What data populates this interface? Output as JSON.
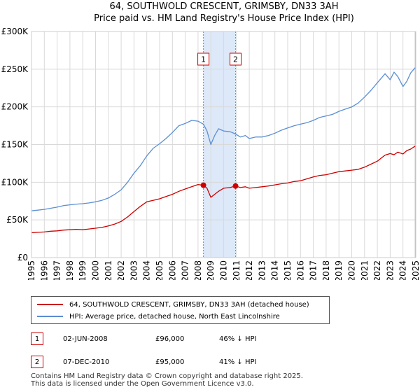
{
  "title_line1": "64, SOUTHWOLD CRESCENT, GRIMSBY, DN33 3AH",
  "title_line2": "Price paid vs. HM Land Registry's House Price Index (HPI)",
  "chart_data": {
    "type": "line",
    "ylim": [
      0,
      300000
    ],
    "xlim": [
      1995,
      2025
    ],
    "yticks": [
      {
        "value": 0,
        "label": "£0"
      },
      {
        "value": 50000,
        "label": "£50K"
      },
      {
        "value": 100000,
        "label": "£100K"
      },
      {
        "value": 150000,
        "label": "£150K"
      },
      {
        "value": 200000,
        "label": "£200K"
      },
      {
        "value": 250000,
        "label": "£250K"
      },
      {
        "value": 300000,
        "label": "£300K"
      }
    ],
    "xticks": [
      "1995",
      "1996",
      "1997",
      "1998",
      "1999",
      "2000",
      "2001",
      "2002",
      "2003",
      "2004",
      "2005",
      "2006",
      "2007",
      "2008",
      "2009",
      "2010",
      "2011",
      "2012",
      "2013",
      "2014",
      "2015",
      "2016",
      "2017",
      "2018",
      "2019",
      "2020",
      "2021",
      "2022",
      "2023",
      "2024",
      "2025"
    ],
    "grid": true,
    "shaded_period": [
      2008.42,
      2010.93
    ],
    "series": [
      {
        "name": "64, SOUTHWOLD CRESCENT, GRIMSBY, DN33 3AH (detached house)",
        "color": "#cc0000",
        "x": [
          1995,
          1995.5,
          1996,
          1996.5,
          1997,
          1997.5,
          1998,
          1998.5,
          1999,
          1999.5,
          2000,
          2000.5,
          2001,
          2001.5,
          2002,
          2002.5,
          2003,
          2003.5,
          2004,
          2004.5,
          2005,
          2005.5,
          2006,
          2006.5,
          2007,
          2007.5,
          2008,
          2008.42,
          2008.7,
          2009,
          2009.3,
          2009.6,
          2010,
          2010.5,
          2010.93,
          2011.3,
          2011.7,
          2012,
          2012.5,
          2013,
          2013.5,
          2014,
          2014.5,
          2015,
          2015.5,
          2016,
          2016.5,
          2017,
          2017.5,
          2018,
          2018.5,
          2019,
          2019.5,
          2020,
          2020.5,
          2021,
          2021.5,
          2022,
          2022.3,
          2022.6,
          2023,
          2023.3,
          2023.6,
          2024,
          2024.3,
          2024.6,
          2024.95
        ],
        "values": [
          33000,
          33500,
          34000,
          35000,
          35500,
          36500,
          37000,
          37500,
          37000,
          38000,
          39000,
          40000,
          42000,
          44500,
          48000,
          54000,
          61000,
          68000,
          74000,
          76000,
          78000,
          81000,
          84000,
          88000,
          91000,
          94000,
          97000,
          96000,
          92000,
          80000,
          84000,
          88000,
          92000,
          93000,
          95000,
          93000,
          94000,
          92000,
          93000,
          94000,
          95000,
          96500,
          98000,
          99000,
          101000,
          102000,
          104500,
          107000,
          109000,
          110000,
          112000,
          114000,
          115000,
          116000,
          117000,
          120000,
          124000,
          128000,
          132000,
          136000,
          138000,
          136500,
          140000,
          137500,
          142000,
          144000,
          148000
        ]
      },
      {
        "name": "HPI: Average price, detached house, North East Lincolnshire",
        "color": "#5b8fd4",
        "x": [
          1995,
          1995.5,
          1996,
          1996.5,
          1997,
          1997.5,
          1998,
          1998.5,
          1999,
          1999.5,
          2000,
          2000.5,
          2001,
          2001.5,
          2002,
          2002.5,
          2003,
          2003.5,
          2004,
          2004.5,
          2005,
          2005.5,
          2006,
          2006.5,
          2007,
          2007.5,
          2008,
          2008.42,
          2008.7,
          2009,
          2009.3,
          2009.6,
          2010,
          2010.5,
          2010.93,
          2011.3,
          2011.7,
          2012,
          2012.5,
          2013,
          2013.5,
          2014,
          2014.5,
          2015,
          2015.5,
          2016,
          2016.5,
          2017,
          2017.5,
          2018,
          2018.5,
          2019,
          2019.5,
          2020,
          2020.5,
          2021,
          2021.5,
          2022,
          2022.3,
          2022.6,
          2023,
          2023.3,
          2023.6,
          2024,
          2024.3,
          2024.6,
          2024.95
        ],
        "values": [
          62000,
          63000,
          64000,
          65500,
          67000,
          69000,
          70000,
          71000,
          71500,
          72500,
          74000,
          76000,
          79000,
          84000,
          90000,
          100000,
          112000,
          122000,
          135000,
          145000,
          151000,
          158000,
          166000,
          175000,
          178000,
          182000,
          181000,
          177000,
          168000,
          150000,
          162000,
          171000,
          168000,
          167000,
          164000,
          160000,
          162000,
          158000,
          160000,
          160000,
          162000,
          165000,
          169000,
          172000,
          175000,
          177000,
          179000,
          182000,
          186000,
          188000,
          190000,
          194000,
          197000,
          200000,
          205000,
          213000,
          222000,
          232000,
          238000,
          244000,
          236000,
          246000,
          240000,
          227000,
          234000,
          245000,
          252000
        ]
      }
    ],
    "markers": [
      {
        "label": "1",
        "x": 2008.42,
        "value": 96000
      },
      {
        "label": "2",
        "x": 2010.93,
        "value": 95000
      }
    ]
  },
  "legend": {
    "red_label": "64, SOUTHWOLD CRESCENT, GRIMSBY, DN33 3AH (detached house)",
    "blue_label": "HPI: Average price, detached house, North East Lincolnshire"
  },
  "transactions": [
    {
      "num": "1",
      "date": "02-JUN-2008",
      "price": "£96,000",
      "hpi": "46% ↓ HPI"
    },
    {
      "num": "2",
      "date": "07-DEC-2010",
      "price": "£95,000",
      "hpi": "41% ↓ HPI"
    }
  ],
  "footer": {
    "line1": "Contains HM Land Registry data © Crown copyright and database right 2025.",
    "line2": "This data is licensed under the Open Government Licence v3.0."
  },
  "colors": {
    "red": "#cc0000",
    "blue": "#5b8fd4",
    "grid": "#d9d9d9",
    "shade": "#dde8f8"
  }
}
